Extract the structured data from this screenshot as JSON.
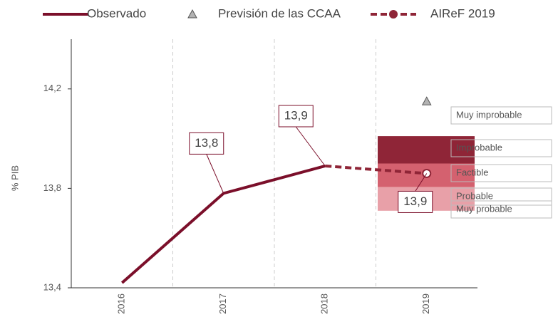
{
  "chart_data": {
    "type": "line",
    "y_label": "% PIB",
    "categories": [
      "2016",
      "2017",
      "2018",
      "2019"
    ],
    "ylim": [
      13.4,
      14.4
    ],
    "yticks": [
      {
        "value": 13.4,
        "label": "13,4"
      },
      {
        "value": 13.8,
        "label": "13,8"
      },
      {
        "value": 14.2,
        "label": "14,2"
      }
    ],
    "grid": true,
    "series": [
      {
        "name": "Observado",
        "color": "#7b0f2a",
        "style": "solid",
        "values": [
          13.42,
          13.78,
          13.89,
          null
        ],
        "value_labels": [
          null,
          "13,8",
          "13,9",
          null
        ]
      },
      {
        "name": "Previsión de las CCAA",
        "color": "#b3b3b3",
        "style": "triangle",
        "values": [
          null,
          null,
          null,
          14.15
        ]
      },
      {
        "name": "AIReF 2019",
        "color": "#8f2537",
        "style": "dashed",
        "values": [
          null,
          null,
          13.89,
          13.86
        ],
        "value_labels": [
          null,
          null,
          null,
          "13,9"
        ]
      }
    ],
    "bands": [
      {
        "name": "Muy improbable",
        "color": null,
        "range": null
      },
      {
        "name": "Improbable",
        "color": "#8f2537",
        "range": [
          13.9,
          14.01
        ]
      },
      {
        "name": "Factible",
        "color": "#d4616f",
        "range": [
          13.805,
          13.9
        ]
      },
      {
        "name": "Probable",
        "color": "#e8a0a8",
        "range": [
          13.71,
          13.805
        ]
      },
      {
        "name": "Muy probable",
        "color": null,
        "range": null
      }
    ]
  }
}
